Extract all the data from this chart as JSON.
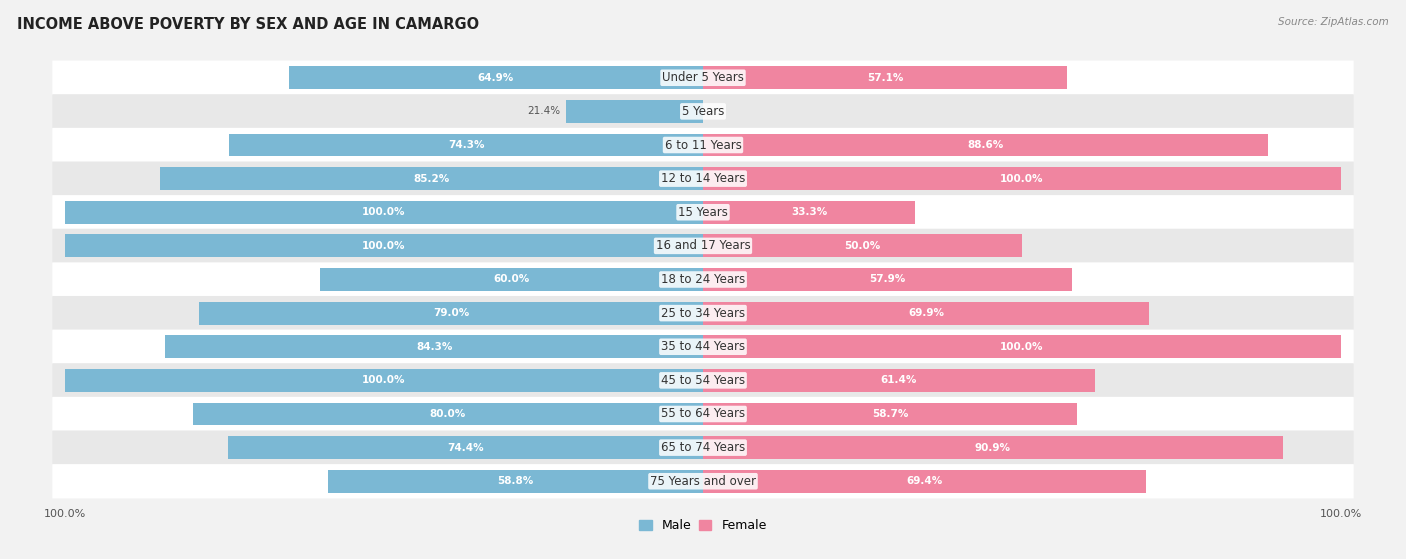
{
  "title": "INCOME ABOVE POVERTY BY SEX AND AGE IN CAMARGO",
  "source": "Source: ZipAtlas.com",
  "categories": [
    "Under 5 Years",
    "5 Years",
    "6 to 11 Years",
    "12 to 14 Years",
    "15 Years",
    "16 and 17 Years",
    "18 to 24 Years",
    "25 to 34 Years",
    "35 to 44 Years",
    "45 to 54 Years",
    "55 to 64 Years",
    "65 to 74 Years",
    "75 Years and over"
  ],
  "male_values": [
    64.9,
    21.4,
    74.3,
    85.2,
    100.0,
    100.0,
    60.0,
    79.0,
    84.3,
    100.0,
    80.0,
    74.4,
    58.8
  ],
  "female_values": [
    57.1,
    0.0,
    88.6,
    100.0,
    33.3,
    50.0,
    57.9,
    69.9,
    100.0,
    61.4,
    58.7,
    90.9,
    69.4
  ],
  "male_color": "#7bb8d4",
  "female_color": "#f085a0",
  "male_color_light": "#b8d8ea",
  "female_color_light": "#f5b8c8",
  "male_label": "Male",
  "female_label": "Female",
  "background_color": "#f2f2f2",
  "row_color_odd": "#ffffff",
  "row_color_even": "#e8e8e8",
  "title_fontsize": 10.5,
  "label_fontsize": 8.5,
  "value_fontsize": 7.5,
  "xlim": 100.0,
  "legend_fontsize": 9,
  "axis_label_fontsize": 8
}
